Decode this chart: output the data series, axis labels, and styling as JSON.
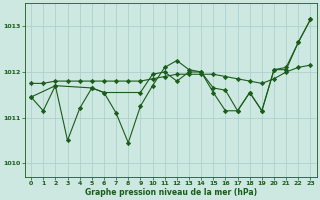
{
  "background_color": "#cce8e0",
  "grid_color": "#aacccc",
  "line_color": "#1a5c1a",
  "xlabel": "Graphe pression niveau de la mer (hPa)",
  "xlim": [
    -0.5,
    23.5
  ],
  "ylim": [
    1009.7,
    1013.5
  ],
  "yticks": [
    1010,
    1011,
    1012,
    1013
  ],
  "xticks": [
    0,
    1,
    2,
    3,
    4,
    5,
    6,
    7,
    8,
    9,
    10,
    11,
    12,
    13,
    14,
    15,
    16,
    17,
    18,
    19,
    20,
    21,
    22,
    23
  ],
  "series1": {
    "x": [
      0,
      1,
      2,
      3,
      4,
      5,
      6,
      7,
      8,
      9,
      10,
      11,
      12,
      13,
      14,
      15,
      16,
      17,
      18,
      19,
      20,
      21,
      22,
      23
    ],
    "y": [
      1011.45,
      1011.15,
      1011.7,
      1010.5,
      1011.2,
      1011.65,
      1011.55,
      1011.1,
      1010.45,
      1011.25,
      1011.7,
      1012.1,
      1012.25,
      1012.05,
      1012.0,
      1011.55,
      1011.15,
      1011.15,
      1011.55,
      1011.15,
      1012.05,
      1012.05,
      1012.65,
      1013.15
    ]
  },
  "series2": {
    "x": [
      0,
      1,
      2,
      3,
      4,
      5,
      6,
      7,
      8,
      9,
      10,
      11,
      12,
      13,
      14,
      15,
      16,
      17,
      18,
      19,
      20,
      21,
      22,
      23
    ],
    "y": [
      1011.75,
      1011.75,
      1011.8,
      1011.8,
      1011.8,
      1011.8,
      1011.8,
      1011.8,
      1011.8,
      1011.8,
      1011.85,
      1011.9,
      1011.95,
      1011.95,
      1011.95,
      1011.95,
      1011.9,
      1011.85,
      1011.8,
      1011.75,
      1011.85,
      1012.0,
      1012.1,
      1012.15
    ]
  },
  "series3": {
    "x": [
      0,
      2,
      5,
      6,
      9,
      10,
      11,
      12,
      13,
      14,
      15,
      16,
      17,
      18,
      19,
      20,
      21,
      22,
      23
    ],
    "y": [
      1011.45,
      1011.7,
      1011.65,
      1011.55,
      1011.55,
      1011.95,
      1012.0,
      1011.8,
      1012.0,
      1012.0,
      1011.65,
      1011.6,
      1011.15,
      1011.55,
      1011.15,
      1012.05,
      1012.1,
      1012.65,
      1013.15
    ]
  }
}
